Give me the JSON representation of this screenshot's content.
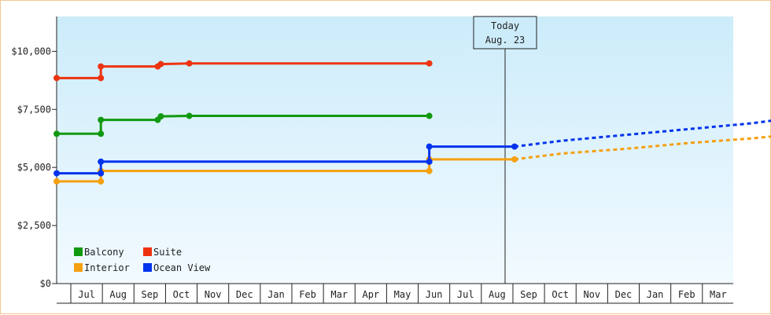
{
  "chart_data": {
    "type": "line",
    "title": "",
    "xlabel": "",
    "ylabel": "",
    "ylim": [
      0,
      11500
    ],
    "y_ticks": [
      0,
      2500,
      5000,
      7500,
      10000
    ],
    "y_tick_labels": [
      "$0",
      "$2,500",
      "$5,000",
      "$7,500",
      "$10,000"
    ],
    "months": [
      "Jul",
      "Aug",
      "Sep",
      "Oct",
      "Nov",
      "Dec",
      "Jan",
      "Feb",
      "Mar",
      "Apr",
      "May",
      "Jun",
      "Jul",
      "Aug",
      "Sep",
      "Oct",
      "Nov",
      "Dec",
      "Jan",
      "Feb",
      "Mar"
    ],
    "today": {
      "line1": "Today",
      "line2": "Aug. 23"
    },
    "grid": false,
    "legend_position": "bottom-left",
    "background": {
      "top": "#ccecfa",
      "bottom": "#f2faff"
    },
    "series": [
      {
        "name": "Balcony",
        "color": "#119911",
        "points": [
          [
            0,
            6450
          ],
          [
            1.4,
            6450
          ],
          [
            1.4,
            7050
          ],
          [
            3.2,
            7050
          ],
          [
            3.3,
            7200
          ],
          [
            4.2,
            7220
          ],
          [
            11.8,
            7220
          ]
        ],
        "forecast": []
      },
      {
        "name": "Suite",
        "color": "#ee3311",
        "points": [
          [
            0,
            8850
          ],
          [
            1.4,
            8850
          ],
          [
            1.4,
            9350
          ],
          [
            3.2,
            9350
          ],
          [
            3.3,
            9450
          ],
          [
            4.2,
            9480
          ],
          [
            11.8,
            9480
          ]
        ],
        "forecast": []
      },
      {
        "name": "Interior",
        "color": "#f5a011",
        "points": [
          [
            0,
            4400
          ],
          [
            1.4,
            4400
          ],
          [
            1.4,
            4850
          ],
          [
            11.8,
            4850
          ],
          [
            11.8,
            5350
          ],
          [
            14.5,
            5350
          ]
        ],
        "forecast": [
          [
            14.5,
            5350
          ],
          [
            16,
            5600
          ],
          [
            18,
            5800
          ],
          [
            20,
            6050
          ],
          [
            22,
            6250
          ],
          [
            23,
            6380
          ]
        ]
      },
      {
        "name": "Ocean View",
        "color": "#0033ee",
        "points": [
          [
            0,
            4750
          ],
          [
            1.4,
            4750
          ],
          [
            1.4,
            5250
          ],
          [
            11.8,
            5250
          ],
          [
            11.8,
            5900
          ],
          [
            14.5,
            5900
          ]
        ],
        "forecast": [
          [
            14.5,
            5900
          ],
          [
            16,
            6150
          ],
          [
            18,
            6400
          ],
          [
            20,
            6650
          ],
          [
            22,
            6900
          ],
          [
            23,
            7080
          ]
        ]
      }
    ]
  }
}
